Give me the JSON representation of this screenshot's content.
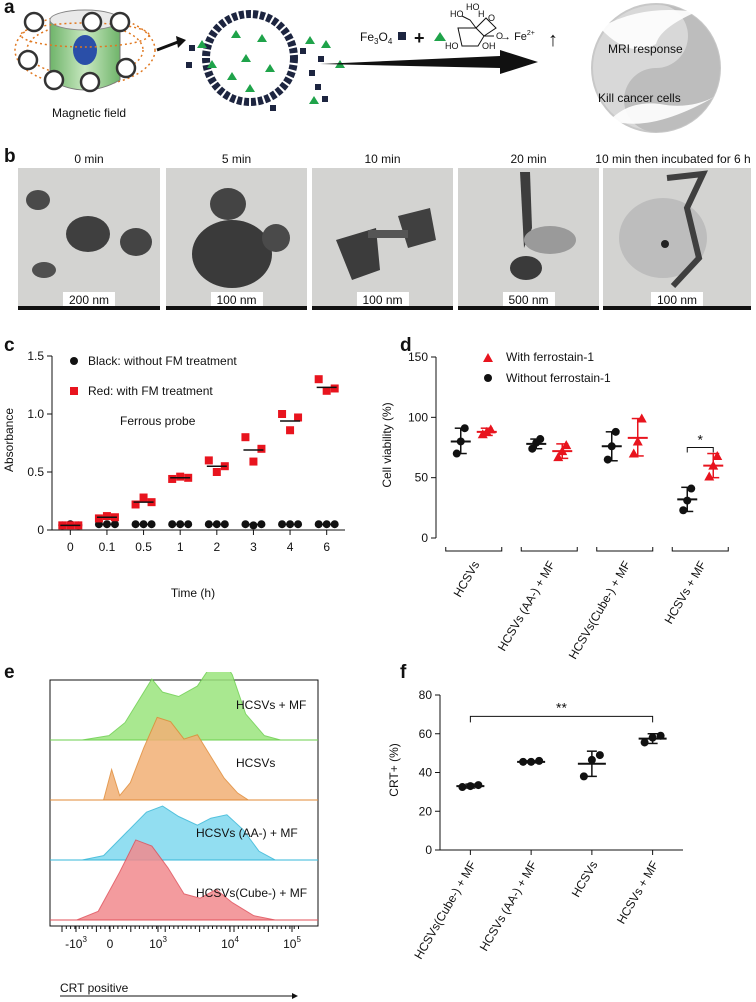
{
  "panel_labels": {
    "a": "a",
    "b": "b",
    "c": "c",
    "d": "d",
    "e": "e",
    "f": "f"
  },
  "panel_a": {
    "field_label": "Magnetic field",
    "reagent_fe": "Fe",
    "reagent_sub": "3",
    "reagent_o": "O",
    "reagent_sub2": "4",
    "plus": "+",
    "fe2": "Fe",
    "fe2_sup": "2+",
    "arrow_up": "↑",
    "mol_ho1": "HO",
    "mol_ho2": "HO",
    "mol_h": "H",
    "mol_o": "O",
    "mol_o2": "O",
    "mol_ho3": "HO",
    "mol_oh": "OH",
    "mri": "MRI response",
    "kill": "Kill cancer cells"
  },
  "panel_b": {
    "images": [
      {
        "time": "0 min",
        "scale": "200 nm"
      },
      {
        "time": "5 min",
        "scale": "100 nm"
      },
      {
        "time": "10 min",
        "scale": "100 nm"
      },
      {
        "time": "20 min",
        "scale": "500 nm"
      },
      {
        "time": "10 min then incubated for 6 h",
        "scale": "100 nm"
      }
    ]
  },
  "chart_data": [
    {
      "id": "c",
      "type": "scatter",
      "xlabel": "Time (h)",
      "ylabel": "Absorbance",
      "categories": [
        "0",
        "0.1",
        "0.5",
        "1",
        "2",
        "3",
        "4",
        "6"
      ],
      "ylim": [
        0,
        1.5
      ],
      "yticks": [
        "0",
        "0.5",
        "1.0",
        "1.5"
      ],
      "annotation": "Ferrous probe",
      "legend": [
        "Black: without FM treatment",
        "Red: with FM treatment"
      ],
      "series": [
        {
          "name": "Black: without FM treatment",
          "color": "#111111",
          "marker": "circle",
          "means": [
            0.04,
            0.05,
            0.05,
            0.05,
            0.05,
            0.05,
            0.05,
            0.05
          ],
          "points": [
            [
              0.04,
              0.05,
              0.04
            ],
            [
              0.05,
              0.05,
              0.05
            ],
            [
              0.05,
              0.05,
              0.05
            ],
            [
              0.05,
              0.05,
              0.05
            ],
            [
              0.05,
              0.05,
              0.05
            ],
            [
              0.05,
              0.04,
              0.05
            ],
            [
              0.05,
              0.05,
              0.05
            ],
            [
              0.05,
              0.05,
              0.05
            ]
          ]
        },
        {
          "name": "Red: with FM treatment",
          "color": "#e8141e",
          "marker": "square",
          "means": [
            0.04,
            0.11,
            0.24,
            0.45,
            0.55,
            0.69,
            0.94,
            1.23
          ],
          "points": [
            [
              0.04,
              0.04,
              0.04
            ],
            [
              0.1,
              0.12,
              0.11
            ],
            [
              0.22,
              0.28,
              0.24
            ],
            [
              0.44,
              0.46,
              0.45
            ],
            [
              0.6,
              0.5,
              0.55
            ],
            [
              0.8,
              0.59,
              0.7
            ],
            [
              1.0,
              0.86,
              0.97
            ],
            [
              1.3,
              1.2,
              1.22
            ]
          ]
        }
      ]
    },
    {
      "id": "d",
      "type": "scatter",
      "ylabel": "Cell viability (%)",
      "categories": [
        "HCSVs",
        "HCSVs (AA-) + MF",
        "HCSVs(Cube-) + MF",
        "HCSVs + MF"
      ],
      "ylim": [
        0,
        150
      ],
      "yticks": [
        "0",
        "50",
        "100",
        "150"
      ],
      "legend": [
        "With ferrostain-1",
        "Without ferrostain-1"
      ],
      "significance": "*",
      "series": [
        {
          "name": "Without ferrostain-1",
          "color": "#111111",
          "marker": "circle",
          "means": [
            80,
            78,
            76,
            32
          ],
          "sd": [
            [
              70,
              91
            ],
            [
              74,
              82
            ],
            [
              64,
              88
            ],
            [
              22,
              42
            ]
          ],
          "points": [
            [
              70,
              91,
              80
            ],
            [
              74,
              82,
              79
            ],
            [
              65,
              88,
              76
            ],
            [
              23,
              41,
              31
            ]
          ]
        },
        {
          "name": "With ferrostain-1",
          "color": "#e8141e",
          "marker": "triangle",
          "means": [
            88,
            72,
            83,
            60
          ],
          "sd": [
            [
              85,
              91
            ],
            [
              66,
              78
            ],
            [
              68,
              99
            ],
            [
              50,
              70
            ]
          ],
          "points": [
            [
              86,
              90,
              88
            ],
            [
              67,
              77,
              72
            ],
            [
              70,
              99,
              80
            ],
            [
              51,
              68,
              60
            ]
          ]
        }
      ]
    },
    {
      "id": "e",
      "type": "area",
      "xlabel": "CRT positive",
      "xticks": [
        "-10",
        "0",
        "10",
        "10",
        "10"
      ],
      "xtick_sup": [
        "3",
        "",
        "3",
        "4",
        "5"
      ],
      "traces": [
        {
          "name": "HCSVs + MF",
          "color": "#9be57d",
          "edge": "#6bcf4c",
          "label": "HCSVs + MF"
        },
        {
          "name": "HCSVs",
          "color": "#f2b075",
          "edge": "#e08a36",
          "label": "HCSVs"
        },
        {
          "name": "HCSVs (AA-) + MF",
          "color": "#7fd9ef",
          "edge": "#36b7d8",
          "label": "HCSVs (AA-) + MF"
        },
        {
          "name": "HCSVs(Cube-) + MF",
          "color": "#f28a8e",
          "edge": "#e0505a",
          "label": "HCSVs(Cube-) + MF"
        }
      ]
    },
    {
      "id": "f",
      "type": "scatter",
      "ylabel": "CRT+ (%)",
      "categories": [
        "HCSVs(Cube-) + MF",
        "HCSVs (AA-) + MF",
        "HCSVs",
        "HCSVs + MF"
      ],
      "ylim": [
        0,
        80
      ],
      "yticks": [
        "0",
        "20",
        "40",
        "60",
        "80"
      ],
      "significance": "**",
      "series": [
        {
          "name": "CRT+",
          "color": "#111111",
          "marker": "circle",
          "means": [
            33,
            45.5,
            44.5,
            57.5
          ],
          "sd": [
            [
              32,
              34
            ],
            [
              45,
              46
            ],
            [
              38,
              51
            ],
            [
              55,
              60
            ]
          ],
          "points": [
            [
              32.5,
              33,
              33.5
            ],
            [
              45.5,
              45.5,
              46
            ],
            [
              38,
              46.5,
              49
            ],
            [
              55.5,
              58,
              59
            ]
          ]
        }
      ]
    }
  ]
}
